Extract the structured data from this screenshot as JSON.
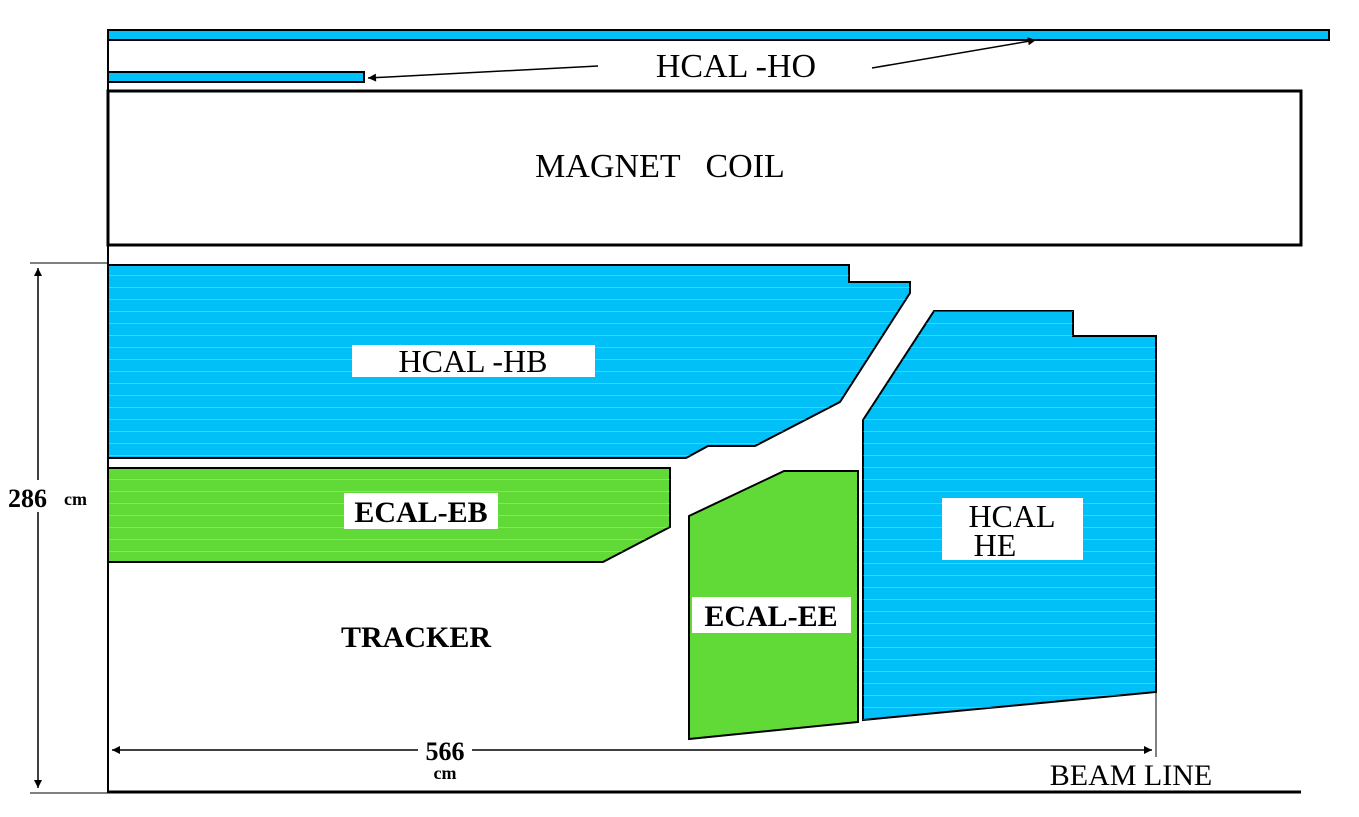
{
  "labels": {
    "hcal_ho": "HCAL -HO",
    "magnet_coil": "MAGNET   COIL",
    "hcal_hb": "HCAL -HB",
    "ecal_eb": "ECAL-EB",
    "ecal_ee": "ECAL-EE",
    "hcal_he_line1": "HCAL",
    "hcal_he_line2": "HE",
    "tracker": "TRACKER",
    "beam_line": "BEAM LINE"
  },
  "dimensions": {
    "radius_value": "286",
    "radius_unit": "cm",
    "length_value": "566",
    "length_unit": "cm"
  },
  "colors": {
    "hcal": "#00c0f7",
    "ecal": "#61d937",
    "stroke": "#000000",
    "label_bg": "#ffffff"
  }
}
